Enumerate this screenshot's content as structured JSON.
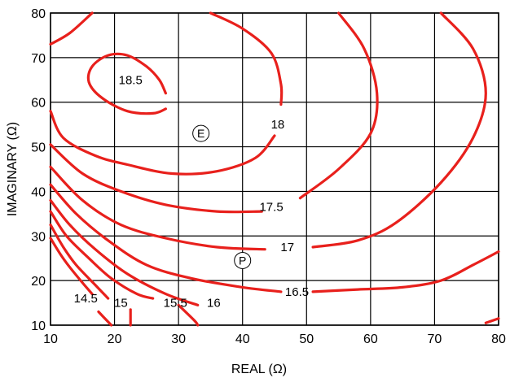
{
  "chart_data": {
    "type": "contour",
    "xlabel": "REAL (Ω)",
    "ylabel": "IMAGINARY (Ω)",
    "xlim": [
      10,
      80
    ],
    "ylim": [
      10,
      80
    ],
    "x_ticks": [
      10,
      20,
      30,
      40,
      50,
      60,
      70,
      80
    ],
    "y_ticks": [
      10,
      20,
      30,
      40,
      50,
      60,
      70,
      80
    ],
    "grid": true,
    "line_color": "#e8201c",
    "contours": [
      {
        "level": "18.5",
        "points": [
          [
            28,
            62
          ],
          [
            27,
            65
          ],
          [
            25,
            68
          ],
          [
            22,
            70.5
          ],
          [
            19,
            70.5
          ],
          [
            16.5,
            68
          ],
          [
            16,
            64.5
          ],
          [
            18,
            61
          ],
          [
            22,
            58
          ],
          [
            26,
            57.5
          ],
          [
            28,
            58.5
          ]
        ],
        "label_at": [
          22.5,
          65
        ]
      },
      {
        "level": "18",
        "points": [
          [
            16.5,
            80
          ],
          [
            13,
            75.5
          ],
          [
            10,
            73
          ]
        ],
        "label_at": null
      },
      {
        "level": "18",
        "points": [
          [
            10,
            58
          ],
          [
            12,
            52
          ],
          [
            17,
            48
          ],
          [
            22,
            46
          ],
          [
            29,
            44
          ],
          [
            36,
            44.5
          ],
          [
            42,
            47.5
          ],
          [
            45,
            52.5
          ]
        ],
        "label_at": [
          45.5,
          55
        ]
      },
      {
        "level": "18",
        "points": [
          [
            46,
            59.5
          ],
          [
            46,
            64
          ],
          [
            44.5,
            71
          ],
          [
            40,
            76.5
          ],
          [
            35,
            80
          ]
        ],
        "label_at": null
      },
      {
        "level": "17.5",
        "points": [
          [
            10,
            50.5
          ],
          [
            15,
            44
          ],
          [
            21,
            40
          ],
          [
            28,
            37
          ],
          [
            36,
            35.5
          ],
          [
            43,
            35.5
          ]
        ],
        "label_at": [
          44.5,
          36.5
        ]
      },
      {
        "level": "17.5",
        "points": [
          [
            49,
            38.5
          ],
          [
            55,
            45
          ],
          [
            60,
            53
          ],
          [
            61,
            62
          ],
          [
            59,
            72
          ],
          [
            55,
            80
          ]
        ],
        "label_at": null
      },
      {
        "level": "17",
        "points": [
          [
            10,
            45.5
          ],
          [
            15,
            38
          ],
          [
            21,
            32.5
          ],
          [
            28,
            29.5
          ],
          [
            36,
            27.5
          ],
          [
            43.5,
            27
          ]
        ],
        "label_at": [
          47,
          27.5
        ]
      },
      {
        "level": "17",
        "points": [
          [
            51,
            27.5
          ],
          [
            58,
            29
          ],
          [
            64,
            33
          ],
          [
            71,
            42
          ],
          [
            76,
            52
          ],
          [
            78,
            62
          ],
          [
            76,
            72
          ],
          [
            71,
            80
          ]
        ],
        "label_at": null
      },
      {
        "level": "16.5",
        "points": [
          [
            10,
            41.5
          ],
          [
            14,
            35
          ],
          [
            19,
            29
          ],
          [
            25,
            23.5
          ],
          [
            32,
            20.5
          ],
          [
            40,
            18.5
          ],
          [
            46,
            17.5
          ]
        ],
        "label_at": [
          48.5,
          17.5
        ]
      },
      {
        "level": "16.5",
        "points": [
          [
            51,
            17.5
          ],
          [
            58,
            18
          ],
          [
            65,
            18.5
          ],
          [
            71,
            20
          ],
          [
            76,
            23.5
          ],
          [
            80,
            26.5
          ]
        ],
        "label_at": null
      },
      {
        "level": "16",
        "points": [
          [
            10,
            38
          ],
          [
            13,
            32.5
          ],
          [
            17,
            27
          ],
          [
            22,
            21.5
          ],
          [
            28,
            17
          ],
          [
            33,
            14.5
          ]
        ],
        "label_at": [
          35.5,
          15
        ]
      },
      {
        "level": "15.5",
        "points": [
          [
            10,
            35.5
          ],
          [
            12.5,
            30
          ],
          [
            16,
            25
          ],
          [
            19.5,
            20.5
          ],
          [
            23.5,
            17
          ],
          [
            26,
            16
          ]
        ],
        "label_at": [
          29.5,
          15
        ]
      },
      {
        "level": "15.5",
        "points": [
          [
            30,
            14.5
          ],
          [
            32.5,
            11
          ],
          [
            33,
            10
          ]
        ],
        "label_at": null
      },
      {
        "level": "15",
        "points": [
          [
            10,
            32.5
          ],
          [
            12,
            27.5
          ],
          [
            14,
            23.5
          ],
          [
            17,
            19
          ],
          [
            19,
            16
          ]
        ],
        "label_at": [
          21,
          15
        ]
      },
      {
        "level": "15",
        "points": [
          [
            22.5,
            13.5
          ],
          [
            22.5,
            10
          ]
        ],
        "label_at": null
      },
      {
        "level": "14.5",
        "points": [
          [
            10,
            29.5
          ],
          [
            11.5,
            26
          ],
          [
            13,
            23
          ],
          [
            15,
            19.5
          ],
          [
            16.5,
            17
          ]
        ],
        "label_at": [
          15.5,
          16
        ]
      },
      {
        "level": "14.5",
        "points": [
          [
            17.5,
            13
          ],
          [
            19.5,
            10
          ]
        ],
        "label_at": null
      },
      {
        "level": "",
        "points": [
          [
            78,
            10.5
          ],
          [
            80,
            11.5
          ]
        ],
        "label_at": null
      }
    ],
    "markers": [
      {
        "label": "E",
        "x": 33.5,
        "y": 53
      },
      {
        "label": "P",
        "x": 40,
        "y": 24.5
      }
    ]
  }
}
